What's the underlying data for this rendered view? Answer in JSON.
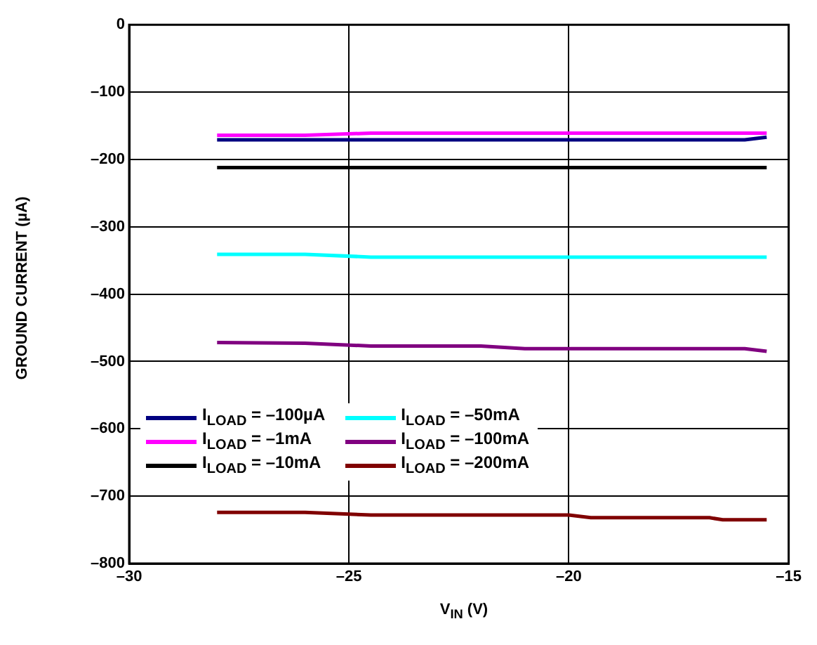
{
  "chart_data": {
    "type": "line",
    "xlabel": "V$_{IN}$ (V)",
    "ylabel": "GROUND CURRENT (µA)",
    "xlim": [
      -30,
      -15
    ],
    "ylim": [
      -800,
      0
    ],
    "xticks": [
      {
        "value": -30,
        "label": "–30"
      },
      {
        "value": -25,
        "label": "–25"
      },
      {
        "value": -20,
        "label": "–20"
      },
      {
        "value": -15,
        "label": "–15"
      }
    ],
    "yticks": [
      {
        "value": 0,
        "label": "0"
      },
      {
        "value": -100,
        "label": "–100"
      },
      {
        "value": -200,
        "label": "–200"
      },
      {
        "value": -300,
        "label": "–300"
      },
      {
        "value": -400,
        "label": "–400"
      },
      {
        "value": -500,
        "label": "–500"
      },
      {
        "value": -600,
        "label": "–600"
      },
      {
        "value": -700,
        "label": "–700"
      },
      {
        "value": -800,
        "label": "–800"
      }
    ],
    "grid": true,
    "legend": "bottom left",
    "marker": "none",
    "series": [
      {
        "name": "I$_{LOAD}$ = –100µA",
        "color": "#000080",
        "x": [
          -28,
          -25,
          -20,
          -16,
          -15.5
        ],
        "values": [
          -171,
          -171,
          -171,
          -171,
          -167
        ]
      },
      {
        "name": "I$_{LOAD}$ = –1mA",
        "color": "#ff00ff",
        "x": [
          -28,
          -26,
          -24.5,
          -20,
          -15.5
        ],
        "values": [
          -164,
          -164,
          -161,
          -161,
          -161
        ]
      },
      {
        "name": "I$_{LOAD}$ = –10mA",
        "color": "#000000",
        "x": [
          -28,
          -25,
          -20,
          -15.5
        ],
        "values": [
          -212,
          -212,
          -212,
          -212
        ]
      },
      {
        "name": "I$_{LOAD}$ = –50mA",
        "color": "#00ffff",
        "x": [
          -28,
          -26,
          -24.5,
          -20,
          -15.5
        ],
        "values": [
          -341,
          -341,
          -345,
          -345,
          -345
        ]
      },
      {
        "name": "I$_{LOAD}$ = –100mA",
        "color": "#800080",
        "x": [
          -28,
          -26,
          -24.5,
          -22,
          -21,
          -16,
          -15.5
        ],
        "values": [
          -472,
          -473,
          -477,
          -477,
          -481,
          -481,
          -485
        ]
      },
      {
        "name": "I$_{LOAD}$ = –200mA",
        "color": "#800000",
        "x": [
          -28,
          -26,
          -24.5,
          -20,
          -19.5,
          -16.8,
          -16.5,
          -15.5
        ],
        "values": [
          -724,
          -724,
          -728,
          -728,
          -732,
          -732,
          -735,
          -735
        ]
      }
    ]
  }
}
